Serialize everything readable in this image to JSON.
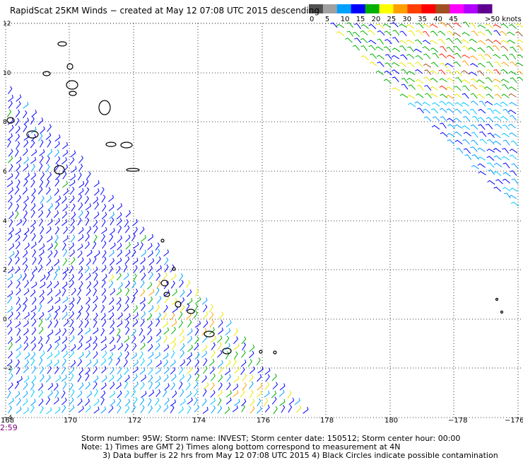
{
  "title": "RapidScat 25KM Winds − created at May 12 07:08 UTC 2015 descending",
  "legend": {
    "colors": [
      "#505050",
      "#a0a0a0",
      "#00a0ff",
      "#0000ff",
      "#00b000",
      "#ffff00",
      "#ffa000",
      "#ff4000",
      "#ff0000",
      "#a05020",
      "#ff00ff",
      "#b000ff",
      "#600090"
    ],
    "labels": [
      "0",
      "5",
      "10",
      "15",
      "20",
      "25",
      "30",
      "35",
      "40",
      "45",
      ">50 knots"
    ]
  },
  "axes": {
    "lat_labels": [
      "12",
      "10",
      "8",
      "6",
      "4",
      "2",
      "0",
      "−2",
      "−4"
    ],
    "lon_labels": [
      "168",
      "170",
      "172",
      "174",
      "176",
      "178",
      "180",
      "−178",
      "−176"
    ]
  },
  "time_label": "2:59",
  "footer": {
    "line1": "Storm number: 95W;   Storm name: INVEST;   Storm center date: 150512;   Storm center hour: 00:00",
    "line2": "Note: 1) Times are GMT  2) Times along bottom correspond to measurement at 4N",
    "line3": "3) Data buffer is 22 hrs from May 12 07:08 UTC 2015   4) Black Circles indicate possible contamination"
  },
  "wind_colors": {
    "blue": "#0000ff",
    "light_blue": "#00a0ff",
    "cyan": "#00c8ff",
    "green": "#00b000",
    "yellow": "#e8e800",
    "orange": "#ffa000",
    "red": "#ff2000",
    "brown": "#a05020"
  }
}
